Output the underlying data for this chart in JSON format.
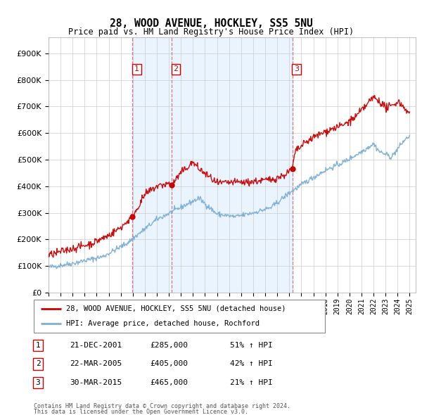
{
  "title": "28, WOOD AVENUE, HOCKLEY, SS5 5NU",
  "subtitle": "Price paid vs. HM Land Registry's House Price Index (HPI)",
  "ytick_values": [
    0,
    100000,
    200000,
    300000,
    400000,
    500000,
    600000,
    700000,
    800000,
    900000
  ],
  "ylim": [
    0,
    960000
  ],
  "xlim_start": 1995.0,
  "xlim_end": 2025.5,
  "sale_dates": [
    2001.97,
    2005.22,
    2015.25
  ],
  "sale_labels": [
    "1",
    "2",
    "3"
  ],
  "sale_prices": [
    285000,
    405000,
    465000
  ],
  "sale_info": [
    {
      "label": "1",
      "date": "21-DEC-2001",
      "price": "£285,000",
      "pct": "51% ↑ HPI"
    },
    {
      "label": "2",
      "date": "22-MAR-2005",
      "price": "£405,000",
      "pct": "42% ↑ HPI"
    },
    {
      "label": "3",
      "date": "30-MAR-2015",
      "price": "£465,000",
      "pct": "21% ↑ HPI"
    }
  ],
  "legend_line1": "28, WOOD AVENUE, HOCKLEY, SS5 5NU (detached house)",
  "legend_line2": "HPI: Average price, detached house, Rochford",
  "footer1": "Contains HM Land Registry data © Crown copyright and database right 2024.",
  "footer2": "This data is licensed under the Open Government Licence v3.0.",
  "red_color": "#cc0000",
  "blue_color": "#7bafd4",
  "shade_color": "#ddeeff",
  "dashed_color": "#cc6666",
  "background_color": "#ffffff",
  "grid_color": "#cccccc"
}
